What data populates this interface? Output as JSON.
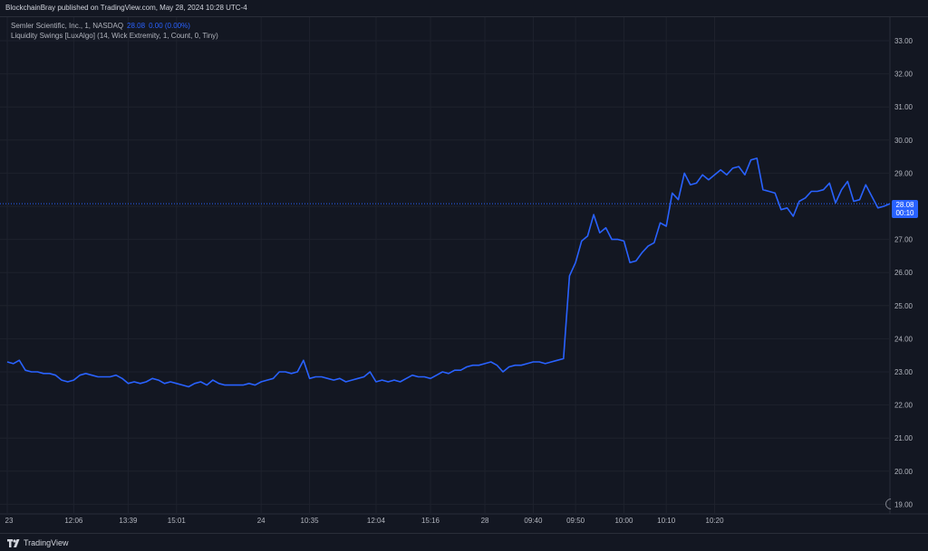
{
  "header": {
    "published": "BlockchainBray published on TradingView.com, May 28, 2024 10:28 UTC-4",
    "symbol_title": "Semler Scientific, Inc., 1, NASDAQ",
    "last_price": "28.08",
    "change": "0.00 (0.00%)",
    "indicator": "Liquidity Swings [LuxAlgo] (14, Wick Extremity, 1, Count, 0, Tiny)"
  },
  "price_label": {
    "price": "28.08",
    "countdown": "00:10"
  },
  "footer": {
    "brand": "TradingView"
  },
  "colors": {
    "background": "#131722",
    "line": "#2962ff",
    "grid": "#1e222d",
    "axis_text": "#b2b5be"
  },
  "chart_data": {
    "type": "line",
    "title": "Semler Scientific, Inc., 1, NASDAQ",
    "xlabel": "",
    "ylabel": "",
    "ylim": [
      18.8,
      33.3
    ],
    "y_ticks": [
      19,
      20,
      21,
      22,
      23,
      24,
      25,
      26,
      27,
      28,
      29,
      30,
      31,
      32,
      33
    ],
    "y_tick_labels": [
      "19.00",
      "20.00",
      "21.00",
      "22.00",
      "23.00",
      "24.00",
      "25.00",
      "26.00",
      "27.00",
      "28.00",
      "29.00",
      "30.00",
      "31.00",
      "32.00",
      "33.00"
    ],
    "x_ticks": [
      {
        "label": "23",
        "i": 0
      },
      {
        "label": "12:06",
        "i": 11
      },
      {
        "label": "13:39",
        "i": 20
      },
      {
        "label": "15:01",
        "i": 28
      },
      {
        "label": "24",
        "i": 42
      },
      {
        "label": "10:35",
        "i": 50
      },
      {
        "label": "12:04",
        "i": 61
      },
      {
        "label": "15:16",
        "i": 70
      },
      {
        "label": "28",
        "i": 79
      },
      {
        "label": "09:40",
        "i": 87
      },
      {
        "label": "09:50",
        "i": 94
      },
      {
        "label": "10:00",
        "i": 102
      },
      {
        "label": "10:10",
        "i": 109
      },
      {
        "label": "10:20",
        "i": 117
      }
    ],
    "grid": true,
    "series": [
      {
        "values": [
          23.3,
          23.25,
          23.35,
          23.05,
          23.0,
          23.0,
          22.95,
          22.95,
          22.9,
          22.75,
          22.7,
          22.75,
          22.9,
          22.95,
          22.9,
          22.85,
          22.85,
          22.85,
          22.9,
          22.8,
          22.65,
          22.7,
          22.65,
          22.7,
          22.8,
          22.75,
          22.65,
          22.7,
          22.65,
          22.6,
          22.55,
          22.65,
          22.7,
          22.6,
          22.75,
          22.65,
          22.6,
          22.6,
          22.6,
          22.6,
          22.65,
          22.6,
          22.7,
          22.75,
          22.8,
          23.0,
          23.0,
          22.95,
          23.0,
          23.35,
          22.8,
          22.85,
          22.85,
          22.8,
          22.75,
          22.8,
          22.7,
          22.75,
          22.8,
          22.85,
          23.0,
          22.7,
          22.75,
          22.7,
          22.75,
          22.7,
          22.8,
          22.9,
          22.85,
          22.85,
          22.8,
          22.9,
          23.0,
          22.95,
          23.05,
          23.05,
          23.15,
          23.2,
          23.2,
          23.25,
          23.3,
          23.2,
          23.0,
          23.15,
          23.2,
          23.2,
          23.25,
          23.3,
          23.3,
          23.25,
          23.3,
          23.35,
          23.4,
          25.9,
          26.3,
          26.95,
          27.1,
          27.75,
          27.2,
          27.35,
          27.0,
          27.0,
          26.95,
          26.3,
          26.35,
          26.6,
          26.8,
          26.9,
          27.5,
          27.4,
          28.4,
          28.2,
          29.0,
          28.65,
          28.7,
          28.95,
          28.8,
          28.95,
          29.1,
          28.95,
          29.15,
          29.2,
          28.95,
          29.4,
          29.45,
          28.5,
          28.45,
          28.4,
          27.9,
          27.95,
          27.7,
          28.15,
          28.25,
          28.45,
          28.45,
          28.5,
          28.7,
          28.1,
          28.5,
          28.75,
          28.15,
          28.2,
          28.65,
          28.3,
          27.95,
          28.0,
          28.08
        ]
      }
    ]
  }
}
